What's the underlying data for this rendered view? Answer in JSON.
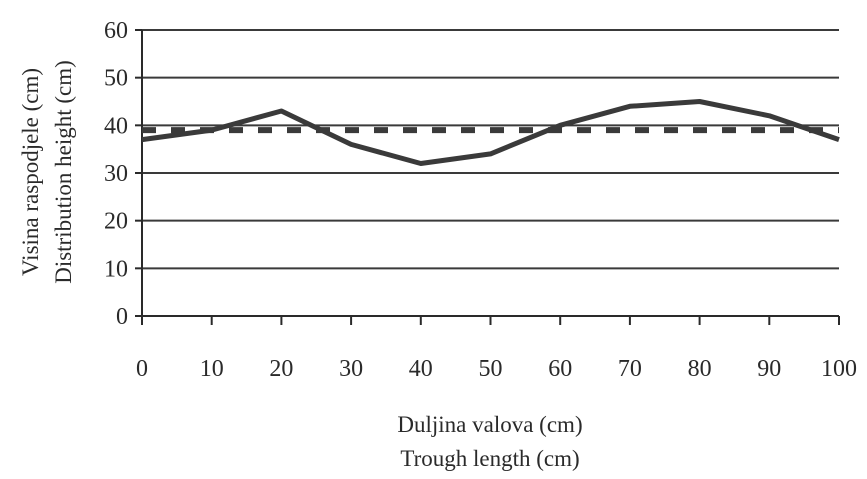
{
  "chart_data": {
    "type": "line",
    "xlabel": [
      "Duljina valova (cm)",
      "Trough length (cm)"
    ],
    "ylabel": [
      "Visina raspodjele (cm)",
      "Distribution height (cm)"
    ],
    "x": [
      0,
      10,
      20,
      30,
      40,
      50,
      60,
      70,
      80,
      90,
      100
    ],
    "xlim": [
      0,
      100
    ],
    "ylim": [
      0,
      60
    ],
    "xticks": [
      0,
      10,
      20,
      30,
      40,
      50,
      60,
      70,
      80,
      90,
      100
    ],
    "yticks": [
      0,
      10,
      20,
      30,
      40,
      50,
      60
    ],
    "grid": "horizontal",
    "legend": "none",
    "series": [
      {
        "style": "solid",
        "color": "#3a3a3a",
        "values": [
          37,
          39,
          43,
          36,
          32,
          34,
          40,
          44,
          45,
          42,
          37
        ]
      },
      {
        "style": "dashed",
        "color": "#3a3a3a",
        "values": [
          39,
          39,
          39,
          39,
          39,
          39,
          39,
          39,
          39,
          39,
          39
        ]
      }
    ]
  }
}
